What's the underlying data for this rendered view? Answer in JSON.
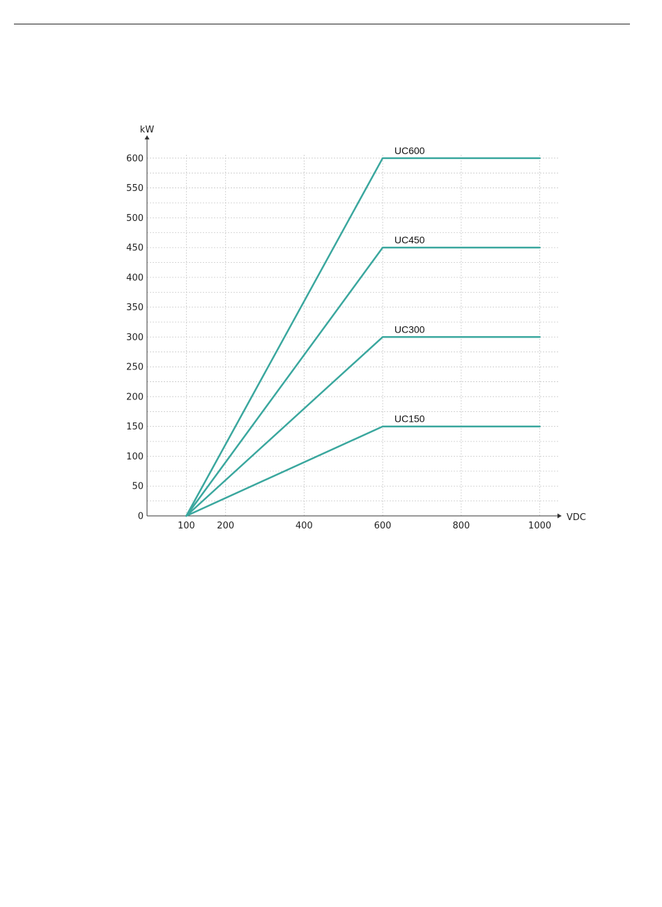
{
  "chart_data": {
    "type": "line",
    "title": "",
    "xlabel": "VDC",
    "ylabel": "kW",
    "xlim": [
      0,
      1050
    ],
    "ylim": [
      0,
      600
    ],
    "x_ticks": [
      100,
      200,
      400,
      600,
      800,
      1000
    ],
    "y_ticks": [
      0,
      50,
      100,
      150,
      200,
      250,
      300,
      350,
      400,
      450,
      500,
      550,
      600
    ],
    "grid": true,
    "line_color": "#3aa79e",
    "series": [
      {
        "name": "UC600",
        "points": [
          [
            100,
            0
          ],
          [
            600,
            600
          ],
          [
            1000,
            600
          ]
        ]
      },
      {
        "name": "UC450",
        "points": [
          [
            100,
            0
          ],
          [
            600,
            450
          ],
          [
            1000,
            450
          ]
        ]
      },
      {
        "name": "UC300",
        "points": [
          [
            100,
            0
          ],
          [
            600,
            300
          ],
          [
            1000,
            300
          ]
        ]
      },
      {
        "name": "UC150",
        "points": [
          [
            100,
            0
          ],
          [
            600,
            150
          ],
          [
            1000,
            150
          ]
        ]
      }
    ]
  }
}
